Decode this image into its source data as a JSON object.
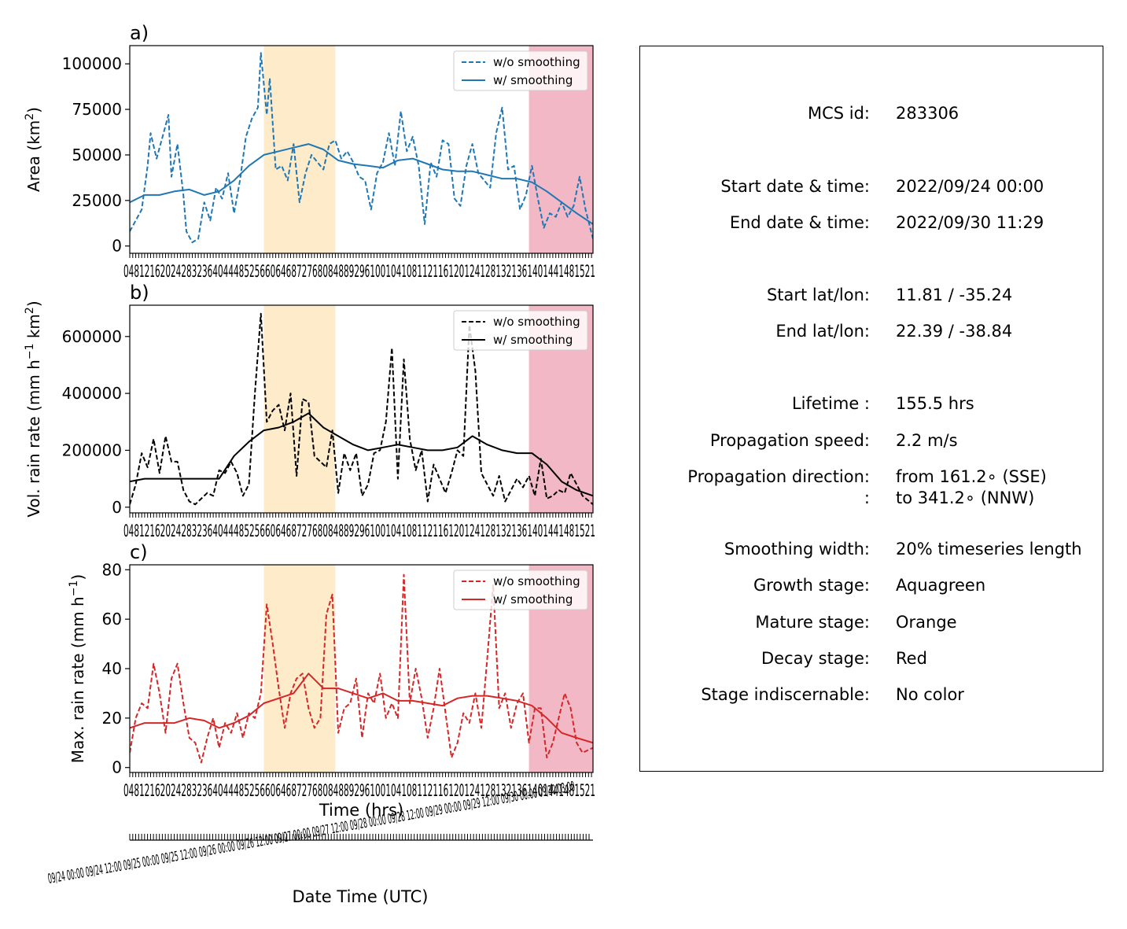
{
  "figure": {
    "panels": [
      {
        "id": "a",
        "label": "a)",
        "ylabel_main": "Area  (km",
        "ylabel_sup": "2",
        "ylabel_end": ")",
        "color": "#1f77b4",
        "yticks": [
          "0",
          "25000",
          "50000",
          "75000",
          "100000"
        ],
        "legend": {
          "dashed": "w/o smoothing",
          "solid": "w/ smoothing"
        },
        "xticklabels_text": "048121620242832364044485256606468727680848892961001041081121161201241281321361401441481521"
      },
      {
        "id": "b",
        "label": "b)",
        "ylabel_main": "Vol. rain rate (mm h",
        "ylabel_sup": "−1",
        "ylabel_mid": " km",
        "ylabel_sup2": "2",
        "ylabel_end": ")",
        "color": "#000000",
        "yticks": [
          "0",
          "200000",
          "400000",
          "600000"
        ],
        "legend": {
          "dashed": "w/o smoothing",
          "solid": "w/ smoothing"
        },
        "xticklabels_text": "048121620242832364044485256606468727680848892961001041081121161201241281321361401441481521"
      },
      {
        "id": "c",
        "label": "c)",
        "ylabel_main": "Max. rain rate  (mm h",
        "ylabel_sup": "−1",
        "ylabel_end": ")",
        "color": "#d62728",
        "yticks": [
          "0",
          "20",
          "40",
          "60",
          "80"
        ],
        "legend": {
          "dashed": "w/o smoothing",
          "solid": "w/ smoothing"
        },
        "xticklabels_text": "048121620242832364044485256606468727680848892961001041081121161201241281321361401441481521",
        "xlabel": "Time (hrs)"
      }
    ],
    "date_axis": {
      "xlabel": "Date Time (UTC)",
      "ticklabels_text": "09/24 00:00 09/24 12:00 09/25 00:00 09/25 12:00 09/26 00:00 09/26 12:00 09/27 00:00 09/27 12:00 09/28 00:00 09/28 12:00 09/29 00:00 09/29 12:00 09/30 00:00 09/30 03:00"
    },
    "stage_colors": {
      "mature": "#fdebc9",
      "decay": "#f2b8c5"
    }
  },
  "chart_data": [
    {
      "type": "line",
      "panel": "a",
      "title": "",
      "xlabel": "",
      "ylabel": "Area  (km2)",
      "xlim": [
        0,
        155.5
      ],
      "ylim": [
        -4000,
        110000
      ],
      "shaded_regions": [
        {
          "stage": "mature",
          "x": [
            45,
            69
          ]
        },
        {
          "stage": "decay",
          "x": [
            134,
            155.5
          ]
        }
      ],
      "series": [
        {
          "name": "w/o smoothing",
          "style": "dashed",
          "x": [
            0,
            2,
            4,
            6,
            7,
            9,
            11,
            13,
            14,
            16,
            18,
            19,
            21,
            23,
            25,
            27,
            29,
            31,
            33,
            35,
            37,
            39,
            41,
            43,
            44,
            46,
            47,
            49,
            51,
            53,
            55,
            57,
            59,
            61,
            63,
            65,
            67,
            69,
            71,
            73,
            75,
            77,
            79,
            81,
            83,
            85,
            87,
            89,
            91,
            93,
            95,
            97,
            99,
            101,
            103,
            105,
            107,
            109,
            111,
            113,
            115,
            117,
            119,
            121,
            123,
            125,
            127,
            129,
            131,
            133,
            135,
            137,
            139,
            141,
            143,
            145,
            147,
            149,
            151,
            153,
            155.5
          ],
          "y": [
            8000,
            14000,
            20000,
            44000,
            62000,
            48000,
            60000,
            72000,
            38000,
            56000,
            28000,
            8000,
            2000,
            4000,
            24000,
            14000,
            32000,
            26000,
            40000,
            18000,
            36000,
            60000,
            70000,
            76000,
            106000,
            72000,
            92000,
            42000,
            44000,
            36000,
            56000,
            24000,
            40000,
            50000,
            46000,
            42000,
            56000,
            58000,
            48000,
            52000,
            46000,
            38000,
            36000,
            20000,
            40000,
            46000,
            62000,
            44000,
            74000,
            52000,
            60000,
            44000,
            12000,
            46000,
            38000,
            58000,
            56000,
            26000,
            22000,
            44000,
            56000,
            40000,
            36000,
            32000,
            62000,
            76000,
            42000,
            44000,
            20000,
            28000,
            44000,
            26000,
            10000,
            18000,
            16000,
            24000,
            16000,
            22000,
            38000,
            20000,
            4000
          ]
        },
        {
          "name": "w/ smoothing",
          "style": "solid",
          "x": [
            0,
            5,
            10,
            15,
            20,
            25,
            30,
            35,
            40,
            45,
            50,
            55,
            60,
            65,
            70,
            75,
            80,
            85,
            90,
            95,
            100,
            105,
            110,
            115,
            120,
            125,
            130,
            135,
            140,
            145,
            150,
            155.5
          ],
          "y": [
            24000,
            28000,
            28000,
            30000,
            31000,
            28000,
            30000,
            36000,
            44000,
            50000,
            52000,
            54000,
            56000,
            53000,
            47000,
            45000,
            44000,
            43000,
            47000,
            48000,
            45000,
            42000,
            41000,
            41000,
            39000,
            37000,
            37000,
            35000,
            30000,
            24000,
            18000,
            12000
          ]
        }
      ]
    },
    {
      "type": "line",
      "panel": "b",
      "title": "",
      "xlabel": "",
      "ylabel": "Vol. rain rate (mm h−1 km2)",
      "xlim": [
        0,
        155.5
      ],
      "ylim": [
        -20000,
        710000
      ],
      "shaded_regions": [
        {
          "stage": "mature",
          "x": [
            45,
            69
          ]
        },
        {
          "stage": "decay",
          "x": [
            134,
            155.5
          ]
        }
      ],
      "series": [
        {
          "name": "w/o smoothing",
          "style": "dashed",
          "x": [
            0,
            2,
            4,
            6,
            8,
            10,
            12,
            14,
            16,
            18,
            20,
            22,
            24,
            26,
            28,
            30,
            32,
            34,
            36,
            38,
            40,
            42,
            44,
            46,
            48,
            50,
            52,
            54,
            56,
            58,
            60,
            62,
            64,
            66,
            68,
            70,
            72,
            74,
            76,
            78,
            80,
            82,
            84,
            86,
            88,
            90,
            92,
            94,
            96,
            98,
            100,
            102,
            104,
            106,
            108,
            110,
            112,
            114,
            116,
            118,
            120,
            122,
            124,
            126,
            128,
            130,
            132,
            134,
            136,
            138,
            140,
            142,
            144,
            146,
            148,
            150,
            152,
            155.5
          ],
          "y": [
            10000,
            80000,
            190000,
            140000,
            240000,
            120000,
            250000,
            160000,
            160000,
            60000,
            20000,
            10000,
            30000,
            50000,
            40000,
            130000,
            120000,
            160000,
            120000,
            40000,
            80000,
            400000,
            680000,
            300000,
            340000,
            360000,
            270000,
            400000,
            110000,
            380000,
            370000,
            180000,
            160000,
            140000,
            270000,
            50000,
            190000,
            130000,
            190000,
            40000,
            80000,
            190000,
            200000,
            300000,
            560000,
            100000,
            520000,
            240000,
            130000,
            200000,
            20000,
            150000,
            100000,
            50000,
            120000,
            200000,
            180000,
            640000,
            480000,
            120000,
            80000,
            40000,
            110000,
            20000,
            60000,
            100000,
            70000,
            110000,
            40000,
            170000,
            30000,
            40000,
            60000,
            50000,
            120000,
            80000,
            40000,
            10000
          ]
        },
        {
          "name": "w/ smoothing",
          "style": "solid",
          "x": [
            0,
            5,
            10,
            15,
            20,
            25,
            30,
            35,
            40,
            45,
            50,
            55,
            60,
            65,
            70,
            75,
            80,
            85,
            90,
            95,
            100,
            105,
            110,
            115,
            120,
            125,
            130,
            135,
            140,
            145,
            150,
            155.5
          ],
          "y": [
            90000,
            100000,
            100000,
            100000,
            100000,
            100000,
            100000,
            180000,
            230000,
            270000,
            280000,
            300000,
            330000,
            280000,
            250000,
            220000,
            200000,
            210000,
            220000,
            210000,
            200000,
            200000,
            210000,
            250000,
            220000,
            200000,
            190000,
            190000,
            150000,
            90000,
            60000,
            40000
          ]
        }
      ]
    },
    {
      "type": "line",
      "panel": "c",
      "title": "",
      "xlabel": "Time (hrs)",
      "ylabel": "Max. rain rate  (mm h−1)",
      "xlim": [
        0,
        155.5
      ],
      "ylim": [
        -2,
        82
      ],
      "shaded_regions": [
        {
          "stage": "mature",
          "x": [
            45,
            69
          ]
        },
        {
          "stage": "decay",
          "x": [
            134,
            155.5
          ]
        }
      ],
      "series": [
        {
          "name": "w/o smoothing",
          "style": "dashed",
          "x": [
            0,
            2,
            4,
            6,
            8,
            10,
            12,
            14,
            16,
            18,
            20,
            22,
            24,
            26,
            28,
            30,
            32,
            34,
            36,
            38,
            40,
            42,
            44,
            46,
            48,
            50,
            52,
            54,
            56,
            58,
            60,
            62,
            64,
            66,
            68,
            70,
            72,
            74,
            76,
            78,
            80,
            82,
            84,
            86,
            88,
            90,
            92,
            94,
            96,
            98,
            100,
            102,
            104,
            106,
            108,
            110,
            112,
            114,
            116,
            118,
            120,
            122,
            124,
            126,
            128,
            130,
            132,
            134,
            136,
            138,
            140,
            142,
            144,
            146,
            148,
            150,
            152,
            155.5
          ],
          "y": [
            6,
            20,
            26,
            24,
            42,
            30,
            14,
            36,
            42,
            26,
            12,
            10,
            2,
            12,
            20,
            8,
            18,
            14,
            22,
            12,
            22,
            20,
            30,
            66,
            50,
            32,
            16,
            30,
            36,
            38,
            24,
            16,
            20,
            62,
            70,
            14,
            24,
            26,
            36,
            12,
            30,
            26,
            38,
            20,
            26,
            20,
            78,
            26,
            40,
            28,
            12,
            24,
            40,
            22,
            4,
            10,
            22,
            18,
            30,
            16,
            44,
            74,
            24,
            30,
            16,
            26,
            30,
            10,
            24,
            24,
            4,
            10,
            20,
            30,
            24,
            10,
            6,
            8
          ]
        },
        {
          "name": "w/ smoothing",
          "style": "solid",
          "x": [
            0,
            5,
            10,
            15,
            20,
            25,
            30,
            35,
            40,
            45,
            50,
            55,
            60,
            65,
            70,
            75,
            80,
            85,
            90,
            95,
            100,
            105,
            110,
            115,
            120,
            125,
            130,
            135,
            140,
            145,
            150,
            155.5
          ],
          "y": [
            16,
            18,
            18,
            18,
            20,
            19,
            16,
            18,
            21,
            26,
            28,
            30,
            38,
            32,
            32,
            30,
            28,
            30,
            27,
            27,
            26,
            25,
            28,
            29,
            29,
            28,
            27,
            25,
            20,
            14,
            12,
            10
          ]
        }
      ]
    }
  ],
  "info": {
    "rows": [
      {
        "key": "MCS id:",
        "value": "283306"
      },
      {
        "key": "Start date & time:",
        "value": "2022/09/24 00:00"
      },
      {
        "key": "End date & time:",
        "value": "2022/09/30 11:29"
      },
      {
        "key": "Start lat/lon:",
        "value": "11.81 / -35.24"
      },
      {
        "key": "End lat/lon:",
        "value": "22.39 / -38.84"
      },
      {
        "key": "Lifetime :",
        "value": "155.5 hrs"
      },
      {
        "key": "Propagation speed:",
        "value": "2.2 m/s"
      },
      {
        "key": "Propagation direction:",
        "value": "from 161.2∘ (SSE)"
      },
      {
        "key": ":",
        "value": "to   341.2∘ (NNW)"
      },
      {
        "key": "Smoothing width:",
        "value": "20% timeseries length"
      },
      {
        "key": "Growth stage:",
        "value": "Aquagreen"
      },
      {
        "key": "Mature stage:",
        "value": "Orange"
      },
      {
        "key": "Decay stage:",
        "value": "Red"
      },
      {
        "key": "Stage indiscernable:",
        "value": "No color"
      }
    ]
  }
}
